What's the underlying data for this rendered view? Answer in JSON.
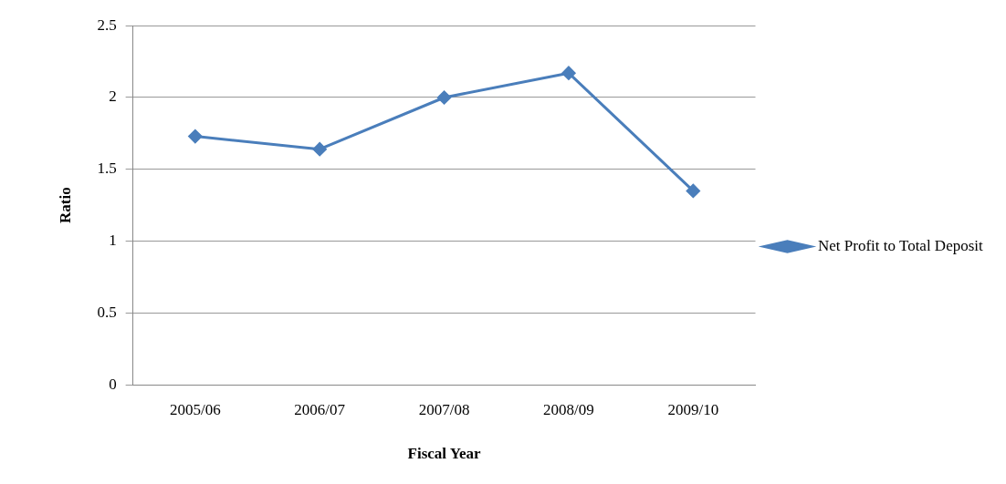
{
  "chart_data": {
    "type": "line",
    "xlabel": "Fiscal Year",
    "ylabel": "Ratio",
    "categories": [
      "2005/06",
      "2006/07",
      "2007/08",
      "2008/09",
      "2009/10"
    ],
    "series": [
      {
        "name": "Net Profit to Total Deposit",
        "color": "#4a7ebb",
        "values": [
          1.73,
          1.64,
          2.0,
          2.17,
          1.35
        ]
      }
    ],
    "ylim": [
      0,
      2.5
    ],
    "yticks": [
      0,
      0.5,
      1,
      1.5,
      2,
      2.5
    ],
    "grid": "y",
    "legend": "right",
    "marker": "diamond",
    "line_style": "solid"
  }
}
